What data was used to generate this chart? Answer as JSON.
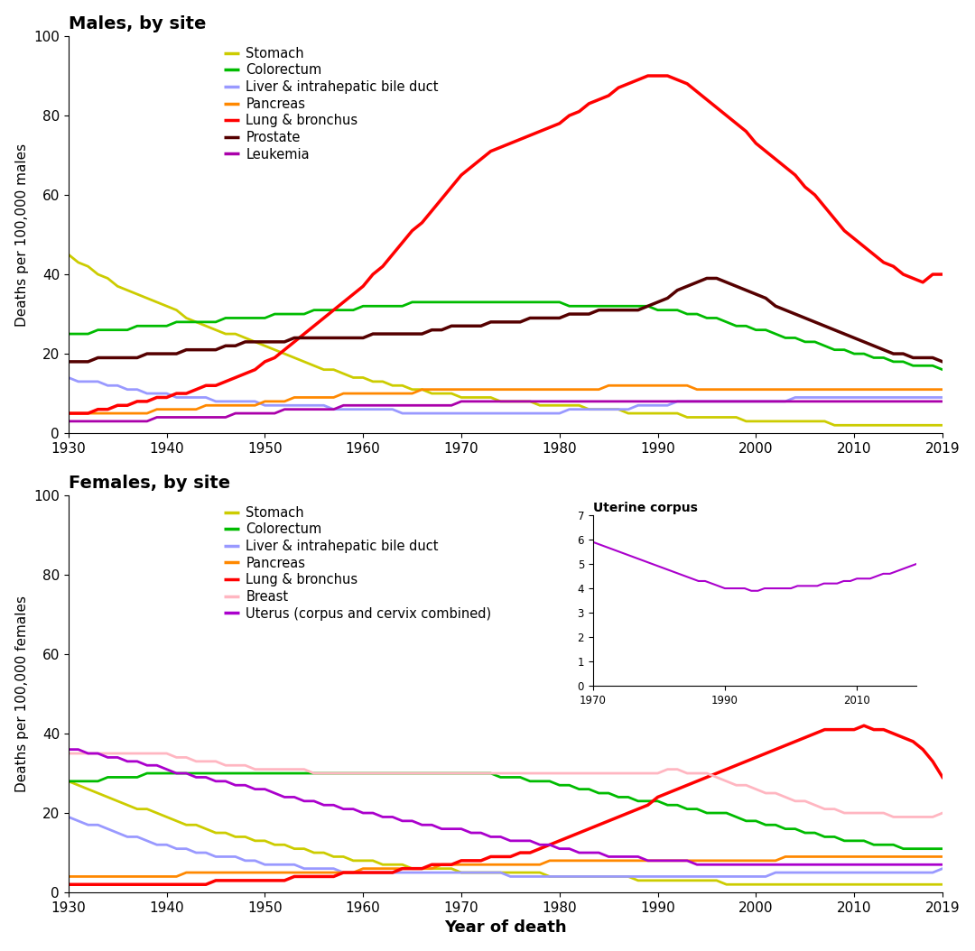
{
  "title_males": "Males, by site",
  "title_females": "Females, by site",
  "xlabel": "Year of death",
  "ylabel_males": "Deaths per 100,000 males",
  "ylabel_females": "Deaths per 100,000 females",
  "inset_title": "Uterine corpus",
  "years_full": [
    1930,
    1931,
    1932,
    1933,
    1934,
    1935,
    1936,
    1937,
    1938,
    1939,
    1940,
    1941,
    1942,
    1943,
    1944,
    1945,
    1946,
    1947,
    1948,
    1949,
    1950,
    1951,
    1952,
    1953,
    1954,
    1955,
    1956,
    1957,
    1958,
    1959,
    1960,
    1961,
    1962,
    1963,
    1964,
    1965,
    1966,
    1967,
    1968,
    1969,
    1970,
    1971,
    1972,
    1973,
    1974,
    1975,
    1976,
    1977,
    1978,
    1979,
    1980,
    1981,
    1982,
    1983,
    1984,
    1985,
    1986,
    1987,
    1988,
    1989,
    1990,
    1991,
    1992,
    1993,
    1994,
    1995,
    1996,
    1997,
    1998,
    1999,
    2000,
    2001,
    2002,
    2003,
    2004,
    2005,
    2006,
    2007,
    2008,
    2009,
    2010,
    2011,
    2012,
    2013,
    2014,
    2015,
    2016,
    2017,
    2018,
    2019
  ],
  "males": {
    "Stomach": [
      45,
      43,
      42,
      40,
      39,
      37,
      36,
      35,
      34,
      33,
      32,
      31,
      29,
      28,
      27,
      26,
      25,
      25,
      24,
      23,
      22,
      21,
      20,
      19,
      18,
      17,
      16,
      16,
      15,
      14,
      14,
      13,
      13,
      12,
      12,
      11,
      11,
      10,
      10,
      10,
      9,
      9,
      9,
      9,
      8,
      8,
      8,
      8,
      7,
      7,
      7,
      7,
      7,
      6,
      6,
      6,
      6,
      5,
      5,
      5,
      5,
      5,
      5,
      4,
      4,
      4,
      4,
      4,
      4,
      3,
      3,
      3,
      3,
      3,
      3,
      3,
      3,
      3,
      2,
      2,
      2,
      2,
      2,
      2,
      2,
      2,
      2,
      2,
      2,
      2
    ],
    "Colorectum": [
      25,
      25,
      25,
      26,
      26,
      26,
      26,
      27,
      27,
      27,
      27,
      28,
      28,
      28,
      28,
      28,
      29,
      29,
      29,
      29,
      29,
      30,
      30,
      30,
      30,
      31,
      31,
      31,
      31,
      31,
      32,
      32,
      32,
      32,
      32,
      33,
      33,
      33,
      33,
      33,
      33,
      33,
      33,
      33,
      33,
      33,
      33,
      33,
      33,
      33,
      33,
      32,
      32,
      32,
      32,
      32,
      32,
      32,
      32,
      32,
      31,
      31,
      31,
      30,
      30,
      29,
      29,
      28,
      27,
      27,
      26,
      26,
      25,
      24,
      24,
      23,
      23,
      22,
      21,
      21,
      20,
      20,
      19,
      19,
      18,
      18,
      17,
      17,
      17,
      16
    ],
    "Liver": [
      14,
      13,
      13,
      13,
      12,
      12,
      11,
      11,
      10,
      10,
      10,
      9,
      9,
      9,
      9,
      8,
      8,
      8,
      8,
      8,
      7,
      7,
      7,
      7,
      7,
      7,
      7,
      6,
      6,
      6,
      6,
      6,
      6,
      6,
      5,
      5,
      5,
      5,
      5,
      5,
      5,
      5,
      5,
      5,
      5,
      5,
      5,
      5,
      5,
      5,
      5,
      6,
      6,
      6,
      6,
      6,
      6,
      6,
      7,
      7,
      7,
      7,
      8,
      8,
      8,
      8,
      8,
      8,
      8,
      8,
      8,
      8,
      8,
      8,
      9,
      9,
      9,
      9,
      9,
      9,
      9,
      9,
      9,
      9,
      9,
      9,
      9,
      9,
      9,
      9
    ],
    "Pancreas": [
      5,
      5,
      5,
      5,
      5,
      5,
      5,
      5,
      5,
      6,
      6,
      6,
      6,
      6,
      7,
      7,
      7,
      7,
      7,
      7,
      8,
      8,
      8,
      9,
      9,
      9,
      9,
      9,
      10,
      10,
      10,
      10,
      10,
      10,
      10,
      10,
      11,
      11,
      11,
      11,
      11,
      11,
      11,
      11,
      11,
      11,
      11,
      11,
      11,
      11,
      11,
      11,
      11,
      11,
      11,
      12,
      12,
      12,
      12,
      12,
      12,
      12,
      12,
      12,
      11,
      11,
      11,
      11,
      11,
      11,
      11,
      11,
      11,
      11,
      11,
      11,
      11,
      11,
      11,
      11,
      11,
      11,
      11,
      11,
      11,
      11,
      11,
      11,
      11,
      11
    ],
    "Lung": [
      5,
      5,
      5,
      6,
      6,
      7,
      7,
      8,
      8,
      9,
      9,
      10,
      10,
      11,
      12,
      12,
      13,
      14,
      15,
      16,
      18,
      19,
      21,
      23,
      25,
      27,
      29,
      31,
      33,
      35,
      37,
      40,
      42,
      45,
      48,
      51,
      53,
      56,
      59,
      62,
      65,
      67,
      69,
      71,
      72,
      73,
      74,
      75,
      76,
      77,
      78,
      80,
      81,
      83,
      84,
      85,
      87,
      88,
      89,
      90,
      90,
      90,
      89,
      88,
      86,
      84,
      82,
      80,
      78,
      76,
      73,
      71,
      69,
      67,
      65,
      62,
      60,
      57,
      54,
      51,
      49,
      47,
      45,
      43,
      42,
      40,
      39,
      38,
      40,
      40
    ],
    "Prostate": [
      18,
      18,
      18,
      19,
      19,
      19,
      19,
      19,
      20,
      20,
      20,
      20,
      21,
      21,
      21,
      21,
      22,
      22,
      23,
      23,
      23,
      23,
      23,
      24,
      24,
      24,
      24,
      24,
      24,
      24,
      24,
      25,
      25,
      25,
      25,
      25,
      25,
      26,
      26,
      27,
      27,
      27,
      27,
      28,
      28,
      28,
      28,
      29,
      29,
      29,
      29,
      30,
      30,
      30,
      31,
      31,
      31,
      31,
      31,
      32,
      33,
      34,
      36,
      37,
      38,
      39,
      39,
      38,
      37,
      36,
      35,
      34,
      32,
      31,
      30,
      29,
      28,
      27,
      26,
      25,
      24,
      23,
      22,
      21,
      20,
      20,
      19,
      19,
      19,
      18
    ],
    "Leukemia": [
      3,
      3,
      3,
      3,
      3,
      3,
      3,
      3,
      3,
      4,
      4,
      4,
      4,
      4,
      4,
      4,
      4,
      5,
      5,
      5,
      5,
      5,
      6,
      6,
      6,
      6,
      6,
      6,
      7,
      7,
      7,
      7,
      7,
      7,
      7,
      7,
      7,
      7,
      7,
      7,
      8,
      8,
      8,
      8,
      8,
      8,
      8,
      8,
      8,
      8,
      8,
      8,
      8,
      8,
      8,
      8,
      8,
      8,
      8,
      8,
      8,
      8,
      8,
      8,
      8,
      8,
      8,
      8,
      8,
      8,
      8,
      8,
      8,
      8,
      8,
      8,
      8,
      8,
      8,
      8,
      8,
      8,
      8,
      8,
      8,
      8,
      8,
      8,
      8,
      8
    ]
  },
  "females": {
    "Stomach": [
      28,
      27,
      26,
      25,
      24,
      23,
      22,
      21,
      21,
      20,
      19,
      18,
      17,
      17,
      16,
      15,
      15,
      14,
      14,
      13,
      13,
      12,
      12,
      11,
      11,
      10,
      10,
      9,
      9,
      8,
      8,
      8,
      7,
      7,
      7,
      6,
      6,
      6,
      6,
      6,
      5,
      5,
      5,
      5,
      5,
      5,
      5,
      5,
      5,
      4,
      4,
      4,
      4,
      4,
      4,
      4,
      4,
      4,
      3,
      3,
      3,
      3,
      3,
      3,
      3,
      3,
      3,
      2,
      2,
      2,
      2,
      2,
      2,
      2,
      2,
      2,
      2,
      2,
      2,
      2,
      2,
      2,
      2,
      2,
      2,
      2,
      2,
      2,
      2,
      2
    ],
    "Colorectum": [
      28,
      28,
      28,
      28,
      29,
      29,
      29,
      29,
      30,
      30,
      30,
      30,
      30,
      30,
      30,
      30,
      30,
      30,
      30,
      30,
      30,
      30,
      30,
      30,
      30,
      30,
      30,
      30,
      30,
      30,
      30,
      30,
      30,
      30,
      30,
      30,
      30,
      30,
      30,
      30,
      30,
      30,
      30,
      30,
      29,
      29,
      29,
      28,
      28,
      28,
      27,
      27,
      26,
      26,
      25,
      25,
      24,
      24,
      23,
      23,
      23,
      22,
      22,
      21,
      21,
      20,
      20,
      20,
      19,
      18,
      18,
      17,
      17,
      16,
      16,
      15,
      15,
      14,
      14,
      13,
      13,
      13,
      12,
      12,
      12,
      11,
      11,
      11,
      11,
      11
    ],
    "Liver": [
      19,
      18,
      17,
      17,
      16,
      15,
      14,
      14,
      13,
      12,
      12,
      11,
      11,
      10,
      10,
      9,
      9,
      9,
      8,
      8,
      7,
      7,
      7,
      7,
      6,
      6,
      6,
      6,
      5,
      5,
      5,
      5,
      5,
      5,
      5,
      5,
      5,
      5,
      5,
      5,
      5,
      5,
      5,
      5,
      5,
      4,
      4,
      4,
      4,
      4,
      4,
      4,
      4,
      4,
      4,
      4,
      4,
      4,
      4,
      4,
      4,
      4,
      4,
      4,
      4,
      4,
      4,
      4,
      4,
      4,
      4,
      4,
      5,
      5,
      5,
      5,
      5,
      5,
      5,
      5,
      5,
      5,
      5,
      5,
      5,
      5,
      5,
      5,
      5,
      6
    ],
    "Pancreas": [
      4,
      4,
      4,
      4,
      4,
      4,
      4,
      4,
      4,
      4,
      4,
      4,
      5,
      5,
      5,
      5,
      5,
      5,
      5,
      5,
      5,
      5,
      5,
      5,
      5,
      5,
      5,
      5,
      5,
      5,
      6,
      6,
      6,
      6,
      6,
      6,
      6,
      6,
      7,
      7,
      7,
      7,
      7,
      7,
      7,
      7,
      7,
      7,
      7,
      8,
      8,
      8,
      8,
      8,
      8,
      8,
      8,
      8,
      8,
      8,
      8,
      8,
      8,
      8,
      8,
      8,
      8,
      8,
      8,
      8,
      8,
      8,
      8,
      9,
      9,
      9,
      9,
      9,
      9,
      9,
      9,
      9,
      9,
      9,
      9,
      9,
      9,
      9,
      9,
      9
    ],
    "Lung": [
      2,
      2,
      2,
      2,
      2,
      2,
      2,
      2,
      2,
      2,
      2,
      2,
      2,
      2,
      2,
      3,
      3,
      3,
      3,
      3,
      3,
      3,
      3,
      4,
      4,
      4,
      4,
      4,
      5,
      5,
      5,
      5,
      5,
      5,
      6,
      6,
      6,
      7,
      7,
      7,
      8,
      8,
      8,
      9,
      9,
      9,
      10,
      10,
      11,
      12,
      13,
      14,
      15,
      16,
      17,
      18,
      19,
      20,
      21,
      22,
      24,
      25,
      26,
      27,
      28,
      29,
      30,
      31,
      32,
      33,
      34,
      35,
      36,
      37,
      38,
      39,
      40,
      41,
      41,
      41,
      41,
      42,
      41,
      41,
      40,
      39,
      38,
      36,
      33,
      29
    ],
    "Breast": [
      35,
      35,
      35,
      35,
      35,
      35,
      35,
      35,
      35,
      35,
      35,
      34,
      34,
      33,
      33,
      33,
      32,
      32,
      32,
      31,
      31,
      31,
      31,
      31,
      31,
      30,
      30,
      30,
      30,
      30,
      30,
      30,
      30,
      30,
      30,
      30,
      30,
      30,
      30,
      30,
      30,
      30,
      30,
      30,
      30,
      30,
      30,
      30,
      30,
      30,
      30,
      30,
      30,
      30,
      30,
      30,
      30,
      30,
      30,
      30,
      30,
      31,
      31,
      30,
      30,
      30,
      29,
      28,
      27,
      27,
      26,
      25,
      25,
      24,
      23,
      23,
      22,
      21,
      21,
      20,
      20,
      20,
      20,
      20,
      19,
      19,
      19,
      19,
      19,
      20
    ],
    "Uterus": [
      36,
      36,
      35,
      35,
      34,
      34,
      33,
      33,
      32,
      32,
      31,
      30,
      30,
      29,
      29,
      28,
      28,
      27,
      27,
      26,
      26,
      25,
      24,
      24,
      23,
      23,
      22,
      22,
      21,
      21,
      20,
      20,
      19,
      19,
      18,
      18,
      17,
      17,
      16,
      16,
      16,
      15,
      15,
      14,
      14,
      13,
      13,
      13,
      12,
      12,
      11,
      11,
      10,
      10,
      10,
      9,
      9,
      9,
      9,
      8,
      8,
      8,
      8,
      8,
      7,
      7,
      7,
      7,
      7,
      7,
      7,
      7,
      7,
      7,
      7,
      7,
      7,
      7,
      7,
      7,
      7,
      7,
      7,
      7,
      7,
      7,
      7,
      7,
      7,
      7
    ]
  },
  "uterine_corpus_years": [
    1970,
    1971,
    1972,
    1973,
    1974,
    1975,
    1976,
    1977,
    1978,
    1979,
    1980,
    1981,
    1982,
    1983,
    1984,
    1985,
    1986,
    1987,
    1988,
    1989,
    1990,
    1991,
    1992,
    1993,
    1994,
    1995,
    1996,
    1997,
    1998,
    1999,
    2000,
    2001,
    2002,
    2003,
    2004,
    2005,
    2006,
    2007,
    2008,
    2009,
    2010,
    2011,
    2012,
    2013,
    2014,
    2015,
    2016,
    2017,
    2018,
    2019
  ],
  "uterine_corpus_values": [
    5.9,
    5.8,
    5.7,
    5.6,
    5.5,
    5.4,
    5.3,
    5.2,
    5.1,
    5.0,
    4.9,
    4.8,
    4.7,
    4.6,
    4.5,
    4.4,
    4.3,
    4.3,
    4.2,
    4.1,
    4.0,
    4.0,
    4.0,
    4.0,
    3.9,
    3.9,
    4.0,
    4.0,
    4.0,
    4.0,
    4.0,
    4.1,
    4.1,
    4.1,
    4.1,
    4.2,
    4.2,
    4.2,
    4.3,
    4.3,
    4.4,
    4.4,
    4.4,
    4.5,
    4.6,
    4.6,
    4.7,
    4.8,
    4.9,
    5.0
  ],
  "colors": {
    "Stomach": "#CCCC00",
    "Colorectum": "#00BB00",
    "Liver": "#9999FF",
    "Pancreas": "#FF8800",
    "Lung": "#FF0000",
    "Prostate": "#550000",
    "Leukemia": "#AA00AA",
    "Breast": "#FFB6C1",
    "Uterus": "#AA00CC"
  },
  "linewidth": 2.0,
  "ylim": [
    0,
    100
  ],
  "xlim": [
    1930,
    2019
  ],
  "legend_males": [
    "Stomach",
    "Colorectum",
    "Liver & intrahepatic bile duct",
    "Pancreas",
    "Lung & bronchus",
    "Prostate",
    "Leukemia"
  ],
  "legend_females": [
    "Stomach",
    "Colorectum",
    "Liver & intrahepatic bile duct",
    "Pancreas",
    "Lung & bronchus",
    "Breast",
    "Uterus (corpus and cervix combined)"
  ],
  "legend_color_keys_m": [
    "Stomach",
    "Colorectum",
    "Liver",
    "Pancreas",
    "Lung",
    "Prostate",
    "Leukemia"
  ],
  "legend_color_keys_f": [
    "Stomach",
    "Colorectum",
    "Liver",
    "Pancreas",
    "Lung",
    "Breast",
    "Uterus"
  ]
}
